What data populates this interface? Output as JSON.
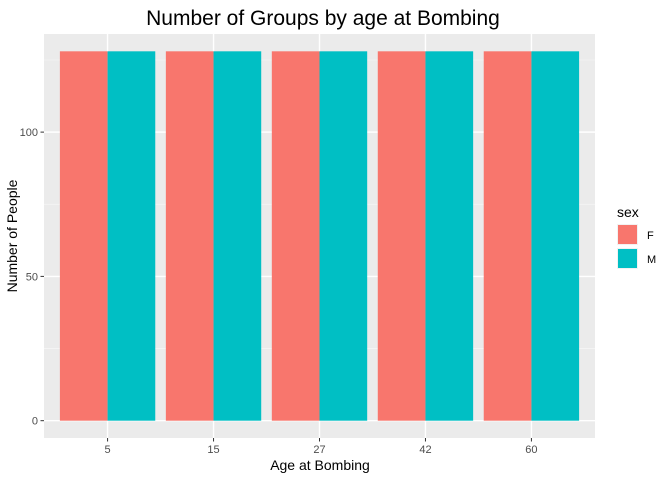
{
  "chart_data": {
    "type": "bar",
    "title": "Number of Groups by age at Bombing",
    "xlabel": "Age at Bombing",
    "ylabel": "Number of People",
    "categories": [
      "5",
      "15",
      "27",
      "42",
      "60"
    ],
    "series": [
      {
        "name": "F",
        "color": "#F8766D",
        "values": [
          128,
          128,
          128,
          128,
          128
        ]
      },
      {
        "name": "M",
        "color": "#00BFC4",
        "values": [
          128,
          128,
          128,
          128,
          128
        ]
      }
    ],
    "ylim": [
      -6,
      134
    ],
    "yticks": [
      0,
      50,
      100
    ],
    "grid": true,
    "legend": {
      "title": "sex",
      "position": "right"
    }
  }
}
